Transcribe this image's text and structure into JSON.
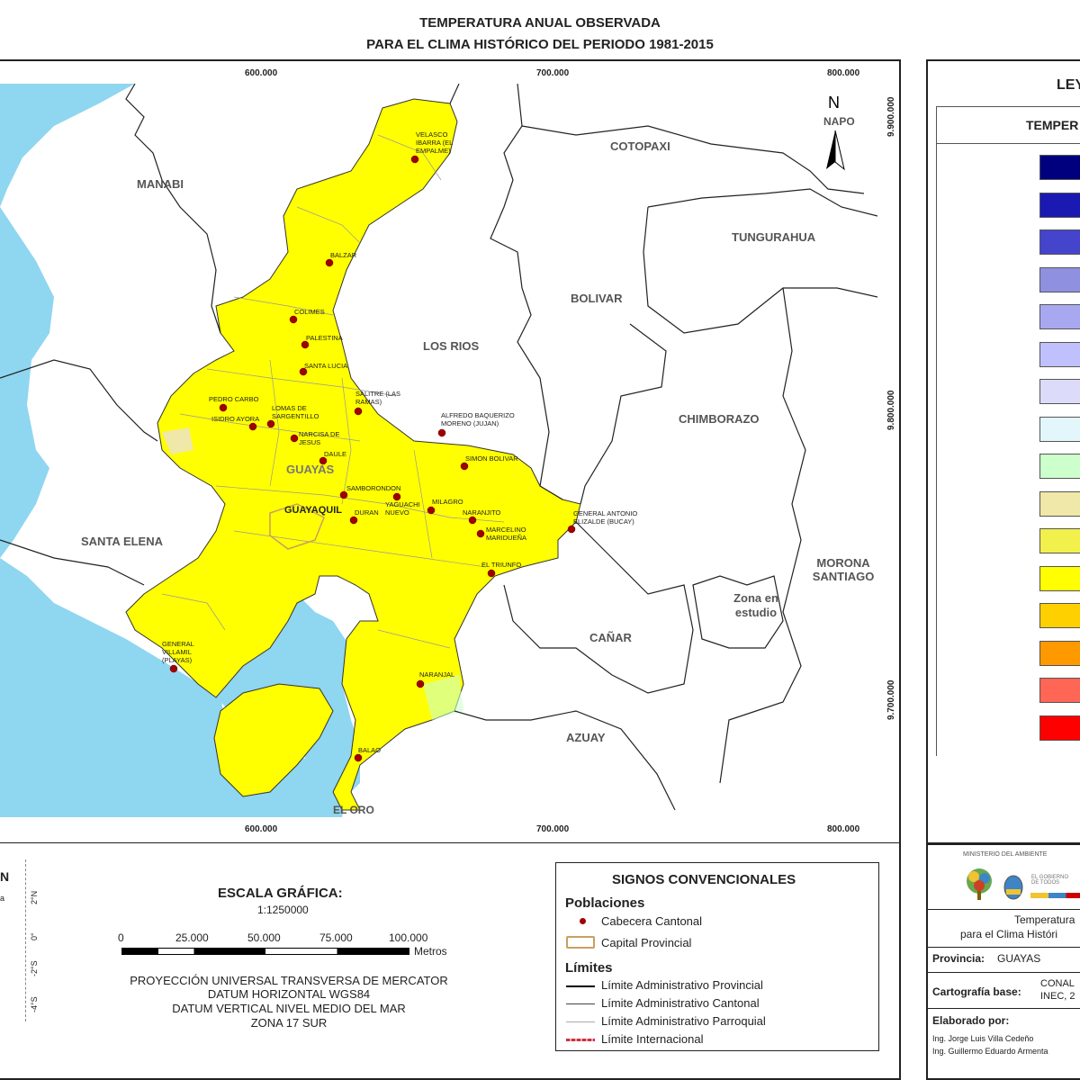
{
  "title": {
    "line1": "TEMPERATURA ANUAL OBSERVADA",
    "line2": "PARA EL CLIMA HISTÓRICO DEL PERIODO 1981-2015"
  },
  "map": {
    "x_ticks": [
      "600.000",
      "700.000",
      "800.000"
    ],
    "y_ticks": [
      "9.900.000",
      "9.800.000",
      "9.700.000"
    ],
    "regions": {
      "manabi": "MANABI",
      "cotopaxi": "COTOPAXI",
      "napo": "NAPO",
      "tungurahua": "TUNGURAHUA",
      "bolivar": "BOLIVAR",
      "los_rios": "LOS RIOS",
      "chimborazo": "CHIMBORAZO",
      "santa_elena": "SANTA ELENA",
      "guayas": "GUAYAS",
      "morona_santiago": "MORONA SANTIAGO",
      "zona_en_estudio": "Zona en estudio",
      "canar": "CAÑAR",
      "azuay": "AZUAY",
      "el_oro": "EL ORO"
    },
    "north_arrow": "N",
    "capital": "GUAYAQUIL",
    "cities": [
      {
        "name": "VELASCO IBARRA (EL EMPALME)"
      },
      {
        "name": "BALZAR"
      },
      {
        "name": "COLIMES"
      },
      {
        "name": "PALESTINA"
      },
      {
        "name": "SANTA LUCIA"
      },
      {
        "name": "PEDRO CARBO"
      },
      {
        "name": "ISIDRO AYORA"
      },
      {
        "name": "LOMAS DE SARGENTILLO"
      },
      {
        "name": "NARCISA DE JESUS"
      },
      {
        "name": "SALITRE (LAS RAMAS)"
      },
      {
        "name": "DAULE"
      },
      {
        "name": "ALFREDO BAQUERIZO MORENO (JUJAN)"
      },
      {
        "name": "SIMON BOLIVAR"
      },
      {
        "name": "SAMBORONDON"
      },
      {
        "name": "YAGUACHI NUEVO"
      },
      {
        "name": "MILAGRO"
      },
      {
        "name": "NARANJITO"
      },
      {
        "name": "DURAN"
      },
      {
        "name": "GENERAL ANTONIO ELIZALDE (BUCAY)"
      },
      {
        "name": "MARCELINO MARIDUEÑA"
      },
      {
        "name": "EL TRIUNFO"
      },
      {
        "name": "GENERAL VILLAMIL (PLAYAS)"
      },
      {
        "name": "NARANJAL"
      },
      {
        "name": "BALAO"
      }
    ]
  },
  "legend": {
    "title_partial": "LEY",
    "subtitle_partial": "TEMPER",
    "colors": [
      "#00007f",
      "#1a1ab3",
      "#4444cc",
      "#9090e0",
      "#a8a8f0",
      "#c0c0ff",
      "#dcdcfa",
      "#e2f6fb",
      "#ccffcc",
      "#f0e8a8",
      "#f2f04a",
      "#ffff00",
      "#ffd000",
      "#ff9900",
      "#ff6655",
      "#ff0000"
    ]
  },
  "locator": {
    "label_partial": "N",
    "lat_ticks": [
      "2°N",
      "0°",
      "-2°S",
      "-4°S"
    ],
    "text_partial": "a"
  },
  "scale": {
    "title": "ESCALA GRÁFICA:",
    "ratio": "1:1250000",
    "ticks": [
      "0",
      "25.000",
      "50.000",
      "75.000",
      "100.000"
    ],
    "units": "Metros"
  },
  "projection": {
    "l1": "PROYECCIÓN UNIVERSAL TRANSVERSA DE MERCATOR",
    "l2": "DATUM HORIZONTAL WGS84",
    "l3": "DATUM VERTICAL NIVEL MEDIO DEL MAR",
    "l4": "ZONA 17 SUR"
  },
  "signs": {
    "title": "SIGNOS CONVENCIONALES",
    "poblaciones": "Poblaciones",
    "cabecera": "Cabecera Cantonal",
    "capital": "Capital Provincial",
    "limites": "Límites",
    "provincial": "Límite Administrativo Provincial",
    "cantonal": "Límite Administrativo Cantonal",
    "parroquial": "Límite Administrativo Parroquial",
    "internacional": "Límite Internacional"
  },
  "info": {
    "ministry": "MINISTERIO DEL AMBIENTE",
    "gob_text": "EL GOBIERNO DE TODOS",
    "desc1": "Temperatura",
    "desc2": "para el Clima Históri",
    "provincia_label": "Provincia:",
    "provincia_value": "GUAYAS",
    "carto_label": "Cartografía base:",
    "carto_value1": "CONAL",
    "carto_value2": "INEC, 2",
    "elaborado_label": "Elaborado por:",
    "author1": "Ing. Jorge Luis Villa Cedeño",
    "author2": "Ing. Guillermo Eduardo Armenta"
  }
}
